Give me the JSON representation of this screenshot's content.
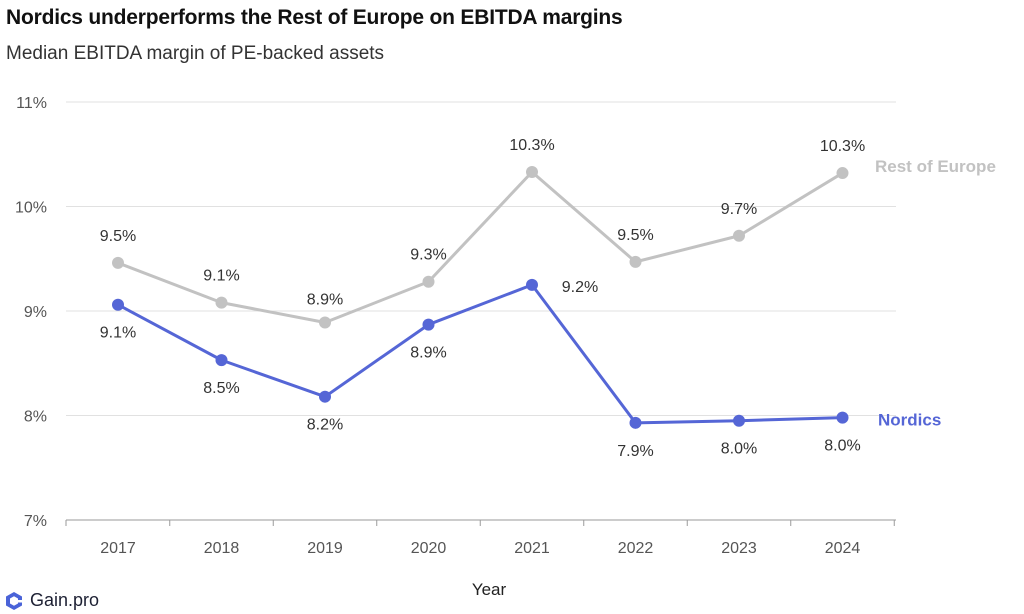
{
  "chart_data": {
    "type": "line",
    "title": "Nordics underperforms the Rest of Europe on EBITDA margins",
    "subtitle": "Median EBITDA margin of PE-backed assets",
    "xlabel": "Year",
    "ylabel": "",
    "categories": [
      "2017",
      "2018",
      "2019",
      "2020",
      "2021",
      "2022",
      "2023",
      "2024"
    ],
    "ylim": [
      7,
      11
    ],
    "yticks": [
      7,
      8,
      9,
      10,
      11
    ],
    "ytick_labels": [
      "7%",
      "8%",
      "9%",
      "10%",
      "11%"
    ],
    "grid": true,
    "series": [
      {
        "name": "Rest of Europe",
        "color": "#c2c2c2",
        "values": [
          9.46,
          9.08,
          8.89,
          9.28,
          10.33,
          9.47,
          9.72,
          10.32
        ],
        "labels": [
          "9.5%",
          "9.1%",
          "8.9%",
          "9.3%",
          "10.3%",
          "9.5%",
          "9.7%",
          "10.3%"
        ]
      },
      {
        "name": "Nordics",
        "color": "#5566d6",
        "values": [
          9.06,
          8.53,
          8.18,
          8.87,
          9.25,
          7.93,
          7.95,
          7.98
        ],
        "labels": [
          "9.1%",
          "8.5%",
          "8.2%",
          "8.9%",
          "9.2%",
          "7.9%",
          "8.0%",
          "8.0%"
        ]
      }
    ]
  },
  "footer": {
    "brand": "Gain.pro",
    "logo_icon": "gain-pro-logo-icon"
  }
}
